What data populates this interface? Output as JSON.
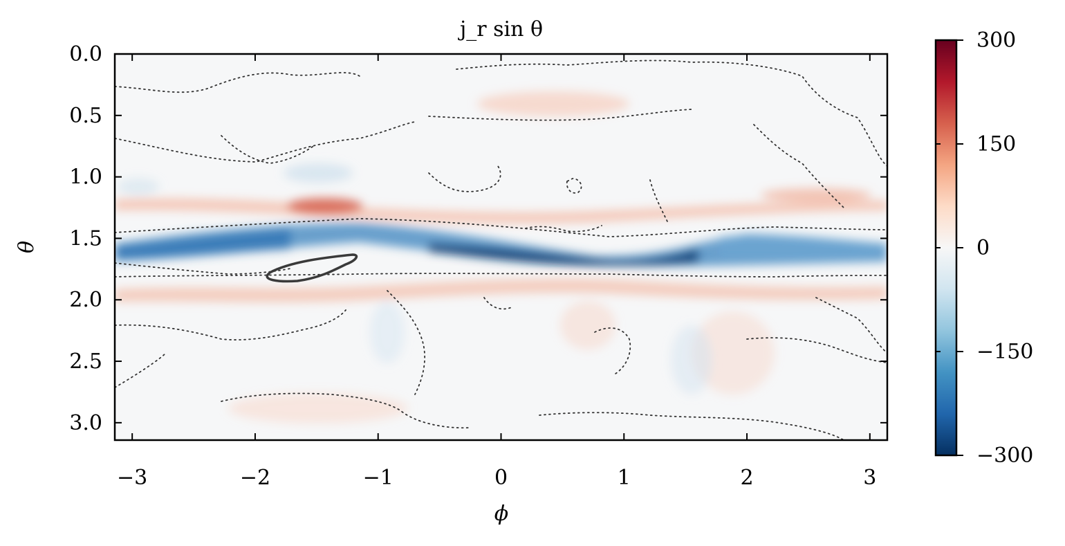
{
  "chart_data": {
    "type": "heatmap",
    "title": "j_r sin θ",
    "xlabel": "ϕ",
    "ylabel": "θ",
    "xlim": [
      -3.14159,
      3.14159
    ],
    "ylim": [
      0.0,
      3.14159
    ],
    "y_inverted": true,
    "xticks": [
      -3,
      -2,
      -1,
      0,
      1,
      2,
      3
    ],
    "xtick_labels": [
      "−3",
      "−2",
      "−1",
      "0",
      "1",
      "2",
      "3"
    ],
    "yticks": [
      0.0,
      0.5,
      1.0,
      1.5,
      2.0,
      2.5,
      3.0
    ],
    "ytick_labels": [
      "0.0",
      "0.5",
      "1.0",
      "1.5",
      "2.0",
      "2.5",
      "3.0"
    ],
    "colorbar": {
      "colormap": "RdBu_r",
      "range": [
        -300,
        300
      ],
      "ticks": [
        300,
        150,
        0,
        -150,
        -300
      ],
      "tick_labels": [
        "300",
        "150",
        "0",
        "−150",
        "−300"
      ],
      "color_stops": [
        "#053061",
        "#2166ac",
        "#4393c3",
        "#92c5de",
        "#d1e5f0",
        "#f7f7f7",
        "#fddbc7",
        "#f4a582",
        "#d6604d",
        "#b2182b",
        "#67001f"
      ]
    },
    "field_features": [
      {
        "kind": "band",
        "sign": "negative",
        "phi_range": [
          -3.14159,
          3.14159
        ],
        "theta_center_start": 1.6,
        "theta_center_end": 1.6,
        "peak_value": -280,
        "note": "strong negative equatorial band, most intense near phi 0 to 1"
      },
      {
        "kind": "band",
        "sign": "positive",
        "theta_center": 1.25,
        "peak_value": 150
      },
      {
        "kind": "band",
        "sign": "positive",
        "theta_center": 1.95,
        "peak_value": 120
      }
    ],
    "contours": [
      {
        "style": "dotted",
        "level": 0
      },
      {
        "style": "solid",
        "level": -200
      }
    ]
  }
}
